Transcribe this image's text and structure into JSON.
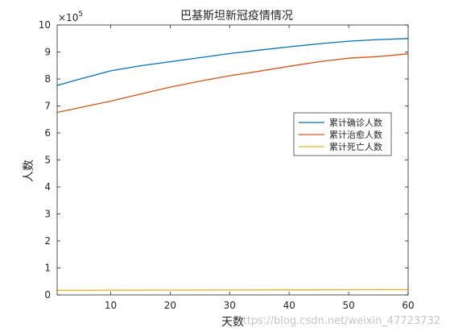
{
  "chart_data": {
    "type": "line",
    "title": "巴基斯坦新冠疫情情况",
    "xlabel": "天数",
    "ylabel": "人数",
    "xlim": [
      1,
      60
    ],
    "ylim": [
      0,
      1000000
    ],
    "y_exponent_label": "×10",
    "y_exponent_power": "5",
    "x_ticks": [
      10,
      20,
      30,
      40,
      50,
      60
    ],
    "x_tick_labels": [
      "10",
      "20",
      "30",
      "40",
      "50",
      "60"
    ],
    "y_ticks": [
      0,
      100000,
      200000,
      300000,
      400000,
      500000,
      600000,
      700000,
      800000,
      900000,
      1000000
    ],
    "y_tick_labels": [
      "0",
      "1",
      "2",
      "3",
      "4",
      "5",
      "6",
      "7",
      "8",
      "9",
      "10"
    ],
    "legend_position": "right",
    "series": [
      {
        "name": "累计确诊人数",
        "color": "#0072BD",
        "x": [
          1,
          5,
          10,
          15,
          20,
          25,
          30,
          35,
          40,
          45,
          50,
          55,
          60
        ],
        "y": [
          776000,
          801000,
          830000,
          849000,
          864000,
          879000,
          894000,
          907000,
          919000,
          930000,
          940000,
          946000,
          950000
        ]
      },
      {
        "name": "累计治愈人数",
        "color": "#D95319",
        "x": [
          1,
          5,
          10,
          15,
          20,
          25,
          30,
          35,
          40,
          45,
          50,
          55,
          60
        ],
        "y": [
          676000,
          695000,
          718000,
          744000,
          770000,
          792000,
          812000,
          829000,
          847000,
          864000,
          877000,
          883000,
          893000
        ]
      },
      {
        "name": "累计死亡人数",
        "color": "#EDB120",
        "x": [
          1,
          10,
          20,
          30,
          40,
          50,
          60
        ],
        "y": [
          17000,
          17400,
          17800,
          18300,
          18700,
          19100,
          19500
        ]
      }
    ]
  },
  "watermark": "https://blog.csdn.net/weixin_47723732"
}
